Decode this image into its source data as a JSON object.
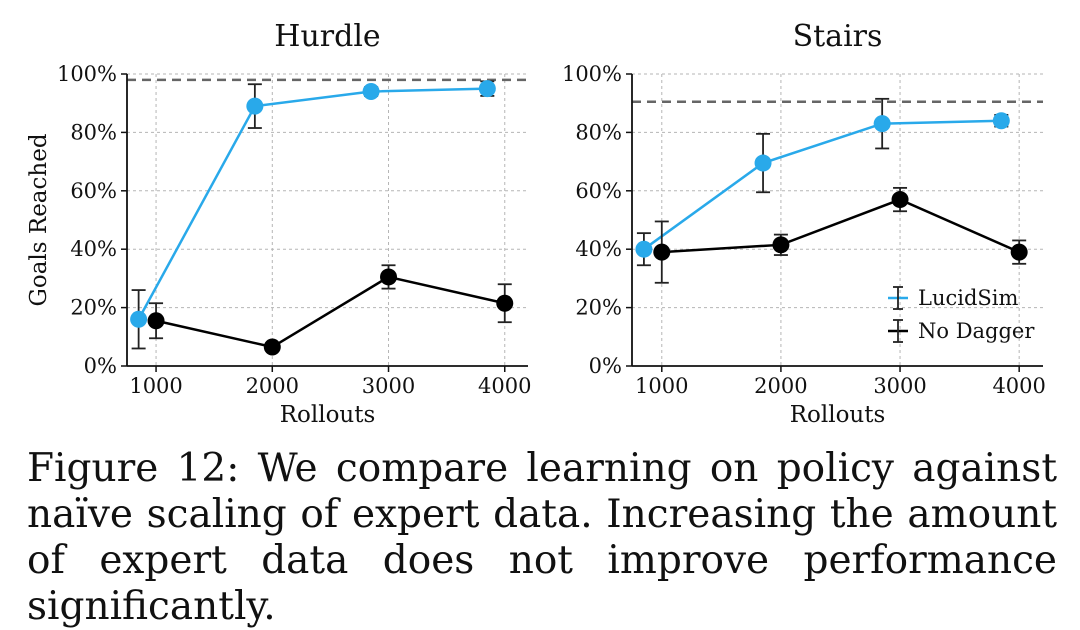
{
  "chart_data": [
    {
      "type": "line",
      "title": "Hurdle",
      "xlabel": "Rollouts",
      "ylabel": "Goals Reached",
      "xlim": [
        750,
        4200
      ],
      "ylim": [
        0,
        100
      ],
      "xticks": [
        1000,
        2000,
        3000,
        4000
      ],
      "yticks": [
        0,
        20,
        40,
        60,
        80,
        100
      ],
      "ytick_labels": [
        "0%",
        "20%",
        "40%",
        "60%",
        "80%",
        "100%"
      ],
      "grid": true,
      "reference_line": 98,
      "series": [
        {
          "name": "LucidSim",
          "color": "#29a9ea",
          "x": [
            850,
            1850,
            2850,
            3850
          ],
          "y": [
            16,
            89,
            94,
            95
          ],
          "err": [
            10,
            7.5,
            1.5,
            2.5
          ]
        },
        {
          "name": "No Dagger",
          "color": "#000000",
          "x": [
            1000,
            2000,
            3000,
            4000
          ],
          "y": [
            15.5,
            6.5,
            30.5,
            21.5
          ],
          "err": [
            6,
            1,
            4,
            6.5
          ]
        }
      ]
    },
    {
      "type": "line",
      "title": "Stairs",
      "xlabel": "Rollouts",
      "ylabel": "",
      "xlim": [
        750,
        4200
      ],
      "ylim": [
        0,
        100
      ],
      "xticks": [
        1000,
        2000,
        3000,
        4000
      ],
      "yticks": [
        0,
        20,
        40,
        60,
        80,
        100
      ],
      "ytick_labels": [
        "0%",
        "20%",
        "40%",
        "60%",
        "80%",
        "100%"
      ],
      "grid": true,
      "reference_line": 90.5,
      "legend": {
        "position": "bottom-right",
        "entries": [
          "LucidSim",
          "No Dagger"
        ]
      },
      "series": [
        {
          "name": "LucidSim",
          "color": "#29a9ea",
          "x": [
            850,
            1850,
            2850,
            3850
          ],
          "y": [
            40,
            69.5,
            83,
            84
          ],
          "err": [
            5.5,
            10,
            8.5,
            2
          ]
        },
        {
          "name": "No Dagger",
          "color": "#000000",
          "x": [
            1000,
            2000,
            3000,
            4000
          ],
          "y": [
            39,
            41.5,
            57,
            39
          ],
          "err": [
            10.5,
            3.5,
            4,
            4
          ]
        }
      ]
    }
  ],
  "caption": "Figure 12: We compare learning on policy against naïve scaling of expert data. Increasing the amount of expert data does not improve performance significantly."
}
